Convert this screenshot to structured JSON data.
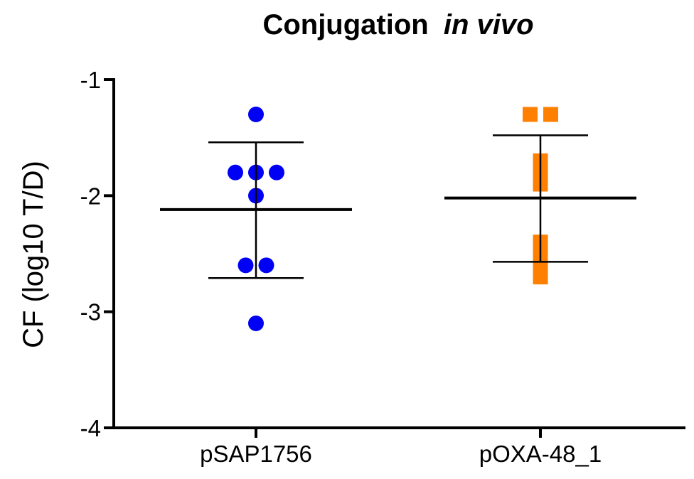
{
  "chart_data": {
    "type": "scatter",
    "title": "Conjugation",
    "title_italic": "in vivo",
    "xlabel": "",
    "ylabel": "CF  (log10 T/D)",
    "ylim": [
      -4,
      -1
    ],
    "yticks": [
      -1,
      -2,
      -3,
      -4
    ],
    "ytick_labels": [
      "-1",
      "-2",
      "-3",
      "-4"
    ],
    "grid": false,
    "categories": [
      "pSAP1756",
      "pOXA-48_1"
    ],
    "series": [
      {
        "name": "pSAP1756",
        "marker": "circle",
        "color": "#0000f5",
        "values": [
          -1.3,
          -1.8,
          -1.8,
          -1.8,
          -2.0,
          -2.6,
          -2.6,
          -3.1
        ],
        "mean": -2.12,
        "sd_low": -2.71,
        "sd_high": -1.54
      },
      {
        "name": "pOXA-48_1",
        "marker": "square",
        "color": "#ff7f00",
        "values": [
          -1.3,
          -1.3,
          -1.7,
          -1.8,
          -1.9,
          -2.4,
          -2.5,
          -2.6,
          -2.7
        ],
        "mean": -2.02,
        "sd_low": -2.57,
        "sd_high": -1.48
      }
    ]
  }
}
